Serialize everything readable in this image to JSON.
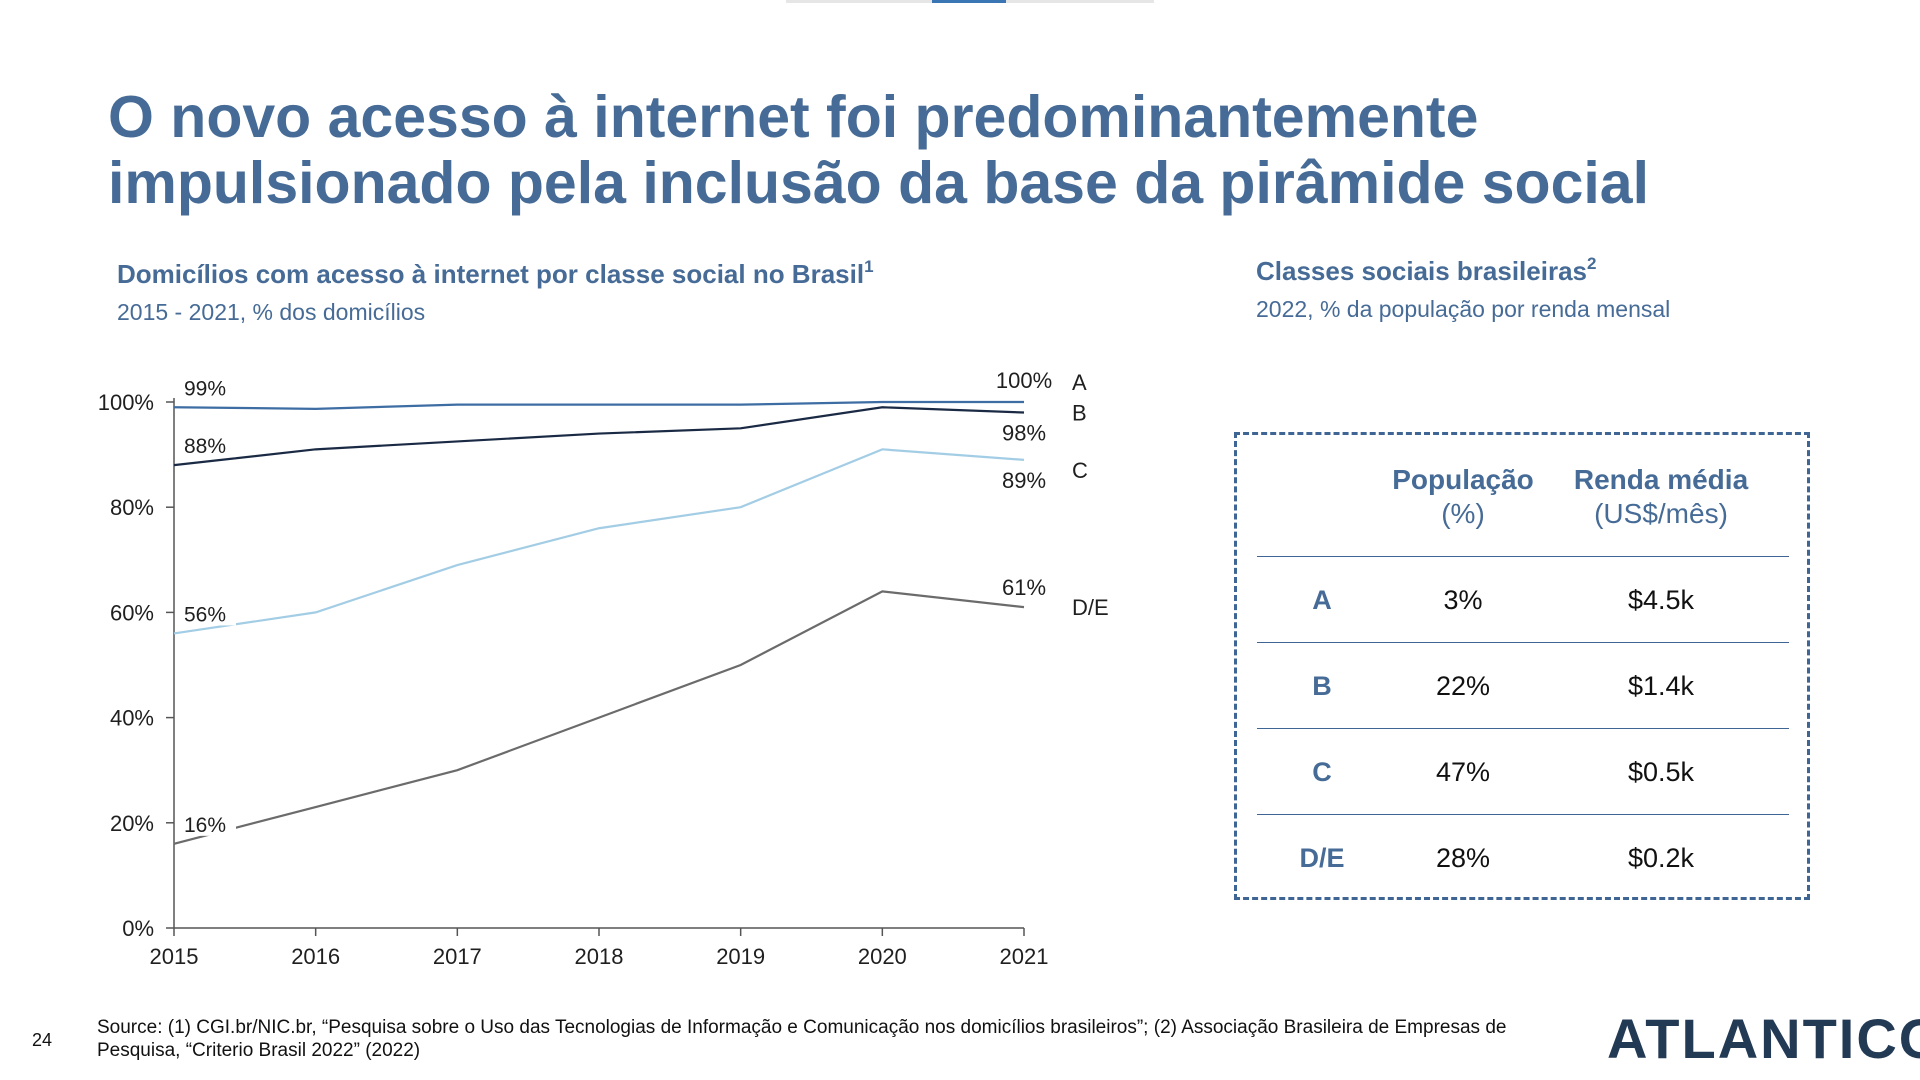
{
  "header": {
    "title_line1": "O novo acesso à internet foi predominantemente",
    "title_line2": "impulsionado pela inclusão da base da pirâmide social"
  },
  "left_panel": {
    "title": "Domicílios com acesso à internet por classe social no Brasil",
    "title_sup": "1",
    "caption": "2015 - 2021, % dos domicílios"
  },
  "right_panel": {
    "title": "Classes sociais brasileiras",
    "title_sup": "2",
    "caption": "2022, % da população por renda mensal",
    "table": {
      "col_population_bold": "População",
      "col_population_unit": "(%)",
      "col_income_bold": "Renda média",
      "col_income_unit": "(US$/mês)",
      "rows": [
        {
          "class": "A",
          "population": "3%",
          "income": "$4.5k"
        },
        {
          "class": "B",
          "population": "22%",
          "income": "$1.4k"
        },
        {
          "class": "C",
          "population": "47%",
          "income": "$0.5k"
        },
        {
          "class": "D/E",
          "population": "28%",
          "income": "$0.2k"
        }
      ]
    }
  },
  "chart_data": {
    "type": "line",
    "title": "Domicílios com acesso à internet por classe social no Brasil",
    "subtitle": "2015 - 2021, % dos domicílios",
    "x": [
      "2015",
      "2016",
      "2017",
      "2018",
      "2019",
      "2020",
      "2021"
    ],
    "ylim": [
      0,
      100
    ],
    "yticks": [
      "0%",
      "20%",
      "40%",
      "60%",
      "80%",
      "100%"
    ],
    "grid": false,
    "series": [
      {
        "name": "A",
        "color": "#3d6da3",
        "values": [
          99,
          98.7,
          99.5,
          99.5,
          99.5,
          100,
          100
        ],
        "start_label": "99%",
        "end_label": "100%"
      },
      {
        "name": "B",
        "color": "#1b2a44",
        "values": [
          88,
          91,
          92.5,
          94,
          95,
          99,
          98
        ],
        "start_label": "88%",
        "end_label": "98%"
      },
      {
        "name": "C",
        "color": "#a3cde5",
        "values": [
          56,
          60,
          69,
          76,
          80,
          91,
          89
        ],
        "start_label": "56%",
        "end_label": "89%"
      },
      {
        "name": "D/E",
        "color": "#6b6b6b",
        "values": [
          16,
          23,
          30,
          40,
          50,
          64,
          61
        ],
        "start_label": "16%",
        "end_label": "61%"
      }
    ]
  },
  "footer": {
    "source": "Source: (1) CGI.br/NIC.br, “Pesquisa sobre o Uso das Tecnologias de Informação e Comunicação nos domicílios brasileiros”; (2) Associação Brasileira de Empresas de Pesquisa, “Criterio Brasil 2022” (2022)",
    "page_number": "24",
    "logo_text": "ATLANTICO"
  }
}
